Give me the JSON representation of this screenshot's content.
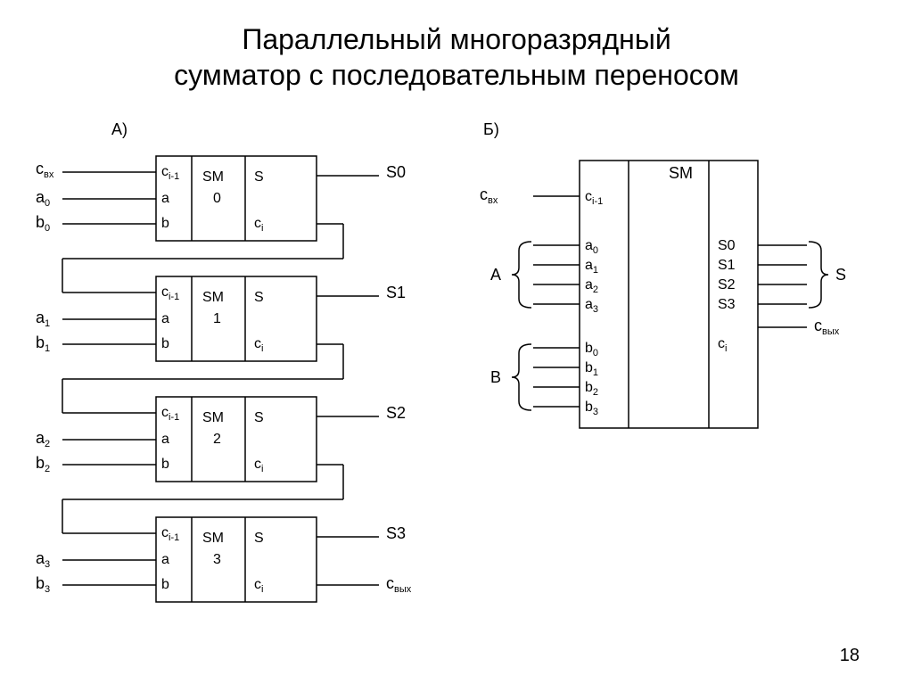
{
  "title_line1": "Параллельный  многоразрядный",
  "title_line2": "сумматор с последовательным переносом",
  "page_number": "18",
  "label_A": "А)",
  "label_B": "Б)",
  "c_in": "c",
  "c_in_sub": "вх",
  "c_out": "c",
  "c_out_sub": "вых",
  "cprev": "c",
  "cprev_sub": "i-1",
  "ci": "c",
  "ci_sub": "i",
  "a": "a",
  "b": "b",
  "SM": "SM",
  "S": "S",
  "group_A": "A",
  "group_B": "B",
  "group_S": "S",
  "bits": [
    "0",
    "1",
    "2",
    "3"
  ],
  "colors": {
    "stroke": "#000000",
    "bg": "#ffffff",
    "text": "#000000"
  },
  "line_w": 1.5,
  "fontsize_title": 32,
  "fontsize_label": 18,
  "fontsize_small": 16,
  "fontsize_sub": 11,
  "adders": [
    {
      "sm_idx": "0",
      "a_sub": "0",
      "b_sub": "0",
      "s_out": "S0",
      "top_in": "c_in"
    },
    {
      "sm_idx": "1",
      "a_sub": "1",
      "b_sub": "1",
      "s_out": "S1",
      "top_in": "carry"
    },
    {
      "sm_idx": "2",
      "a_sub": "2",
      "b_sub": "2",
      "s_out": "S2",
      "top_in": "carry"
    },
    {
      "sm_idx": "3",
      "a_sub": "3",
      "b_sub": "3",
      "s_out": "S3",
      "top_in": "carry",
      "c_out": true
    }
  ],
  "block_B": {
    "left_top": [
      "c_in"
    ],
    "A_pins": [
      "a0",
      "a1",
      "a2",
      "a3"
    ],
    "B_pins": [
      "b0",
      "b1",
      "b2",
      "b3"
    ],
    "S_pins": [
      "S0",
      "S1",
      "S2",
      "S3"
    ],
    "cout": "c_out"
  }
}
